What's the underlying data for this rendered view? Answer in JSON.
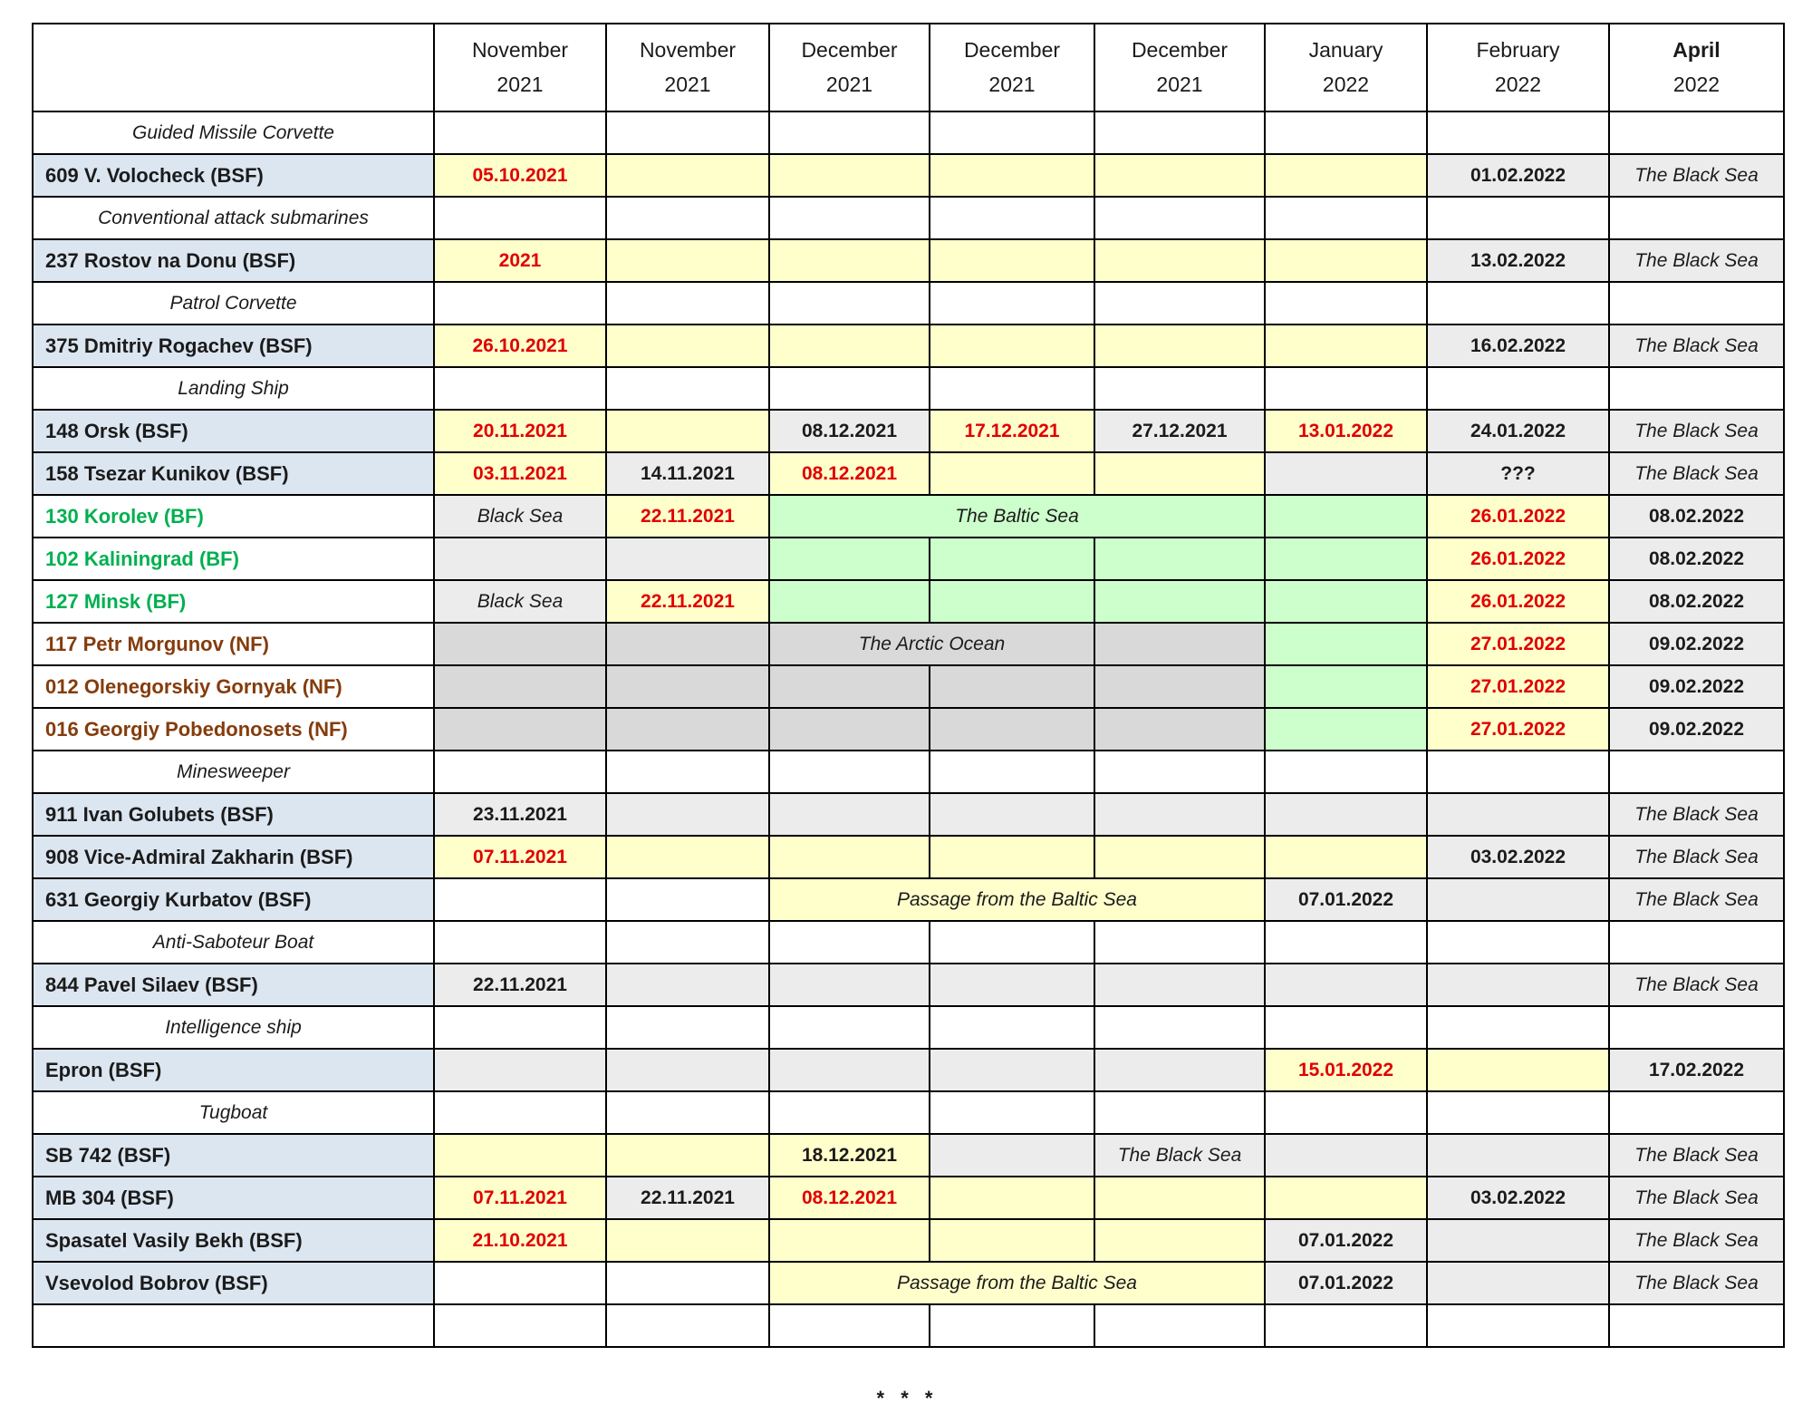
{
  "colors": {
    "yellow": "#FFFFCC",
    "green": "#CCFFCC",
    "gray": "#ECECEC",
    "gray2": "#D9D9D9",
    "white": "#FFFFFF",
    "name_bg_bsf": "#DCE6F1",
    "red_text": "#E00000",
    "black_text": "#1B1B1B",
    "bf_name": "#00B050",
    "nf_name": "#843C0C",
    "border": "#000000"
  },
  "table": {
    "columns": [
      {
        "month": "November",
        "year": "2021"
      },
      {
        "month": "November",
        "year": "2021"
      },
      {
        "month": "December",
        "year": "2021"
      },
      {
        "month": "December",
        "year": "2021"
      },
      {
        "month": "December",
        "year": "2021"
      },
      {
        "month": "January",
        "year": "2022"
      },
      {
        "month": "February",
        "year": "2022"
      },
      {
        "month": "April",
        "year": "2022",
        "bold": true
      }
    ],
    "rows": [
      {
        "type": "category",
        "label": "Guided Missile Corvette"
      },
      {
        "type": "ship",
        "name": "609 V. Volocheck (BSF)",
        "style": "bsf",
        "cells": [
          {
            "t": "05.10.2021",
            "bg": "yellow",
            "c": "red"
          },
          {
            "bg": "yellow"
          },
          {
            "bg": "yellow"
          },
          {
            "bg": "yellow"
          },
          {
            "bg": "yellow"
          },
          {
            "bg": "yellow"
          },
          {
            "t": "01.02.2022",
            "bg": "gray"
          },
          {
            "t": "The Black Sea",
            "bg": "gray",
            "i": true
          }
        ]
      },
      {
        "type": "category",
        "label": "Conventional attack submarines"
      },
      {
        "type": "ship",
        "name": "237 Rostov na Donu (BSF)",
        "style": "bsf",
        "cells": [
          {
            "t": "2021",
            "bg": "yellow",
            "c": "red"
          },
          {
            "bg": "yellow"
          },
          {
            "bg": "yellow"
          },
          {
            "bg": "yellow"
          },
          {
            "bg": "yellow"
          },
          {
            "bg": "yellow"
          },
          {
            "t": "13.02.2022",
            "bg": "gray"
          },
          {
            "t": "The Black Sea",
            "bg": "gray",
            "i": true
          }
        ]
      },
      {
        "type": "category",
        "label": "Patrol Corvette"
      },
      {
        "type": "ship",
        "name": "375 Dmitriy Rogachev (BSF)",
        "style": "bsf",
        "cells": [
          {
            "t": "26.10.2021",
            "bg": "yellow",
            "c": "red"
          },
          {
            "bg": "yellow"
          },
          {
            "bg": "yellow"
          },
          {
            "bg": "yellow"
          },
          {
            "bg": "yellow"
          },
          {
            "bg": "yellow"
          },
          {
            "t": "16.02.2022",
            "bg": "gray"
          },
          {
            "t": "The Black Sea",
            "bg": "gray",
            "i": true
          }
        ]
      },
      {
        "type": "category",
        "label": "Landing Ship"
      },
      {
        "type": "ship",
        "name": "148 Orsk (BSF)",
        "style": "bsf",
        "cells": [
          {
            "t": "20.11.2021",
            "bg": "yellow",
            "c": "red"
          },
          {
            "bg": "yellow"
          },
          {
            "t": "08.12.2021",
            "bg": "gray"
          },
          {
            "t": "17.12.2021",
            "bg": "yellow",
            "c": "red"
          },
          {
            "t": "27.12.2021",
            "bg": "gray"
          },
          {
            "t": "13.01.2022",
            "bg": "yellow",
            "c": "red"
          },
          {
            "t": "24.01.2022",
            "bg": "gray"
          },
          {
            "t": "The Black Sea",
            "bg": "gray",
            "i": true
          }
        ]
      },
      {
        "type": "ship",
        "name": "158 Tsezar Kunikov (BSF)",
        "style": "bsf",
        "cells": [
          {
            "t": "03.11.2021",
            "bg": "yellow",
            "c": "red"
          },
          {
            "t": "14.11.2021",
            "bg": "gray"
          },
          {
            "t": "08.12.2021",
            "bg": "yellow",
            "c": "red"
          },
          {
            "bg": "yellow"
          },
          {
            "bg": "yellow"
          },
          {
            "bg": "gray"
          },
          {
            "t": "???",
            "bg": "gray"
          },
          {
            "t": "The Black Sea",
            "bg": "gray",
            "i": true
          }
        ]
      },
      {
        "type": "ship",
        "name": "130 Korolev (BF)",
        "style": "bf",
        "cells": [
          {
            "t": "Black Sea",
            "bg": "gray",
            "i": true
          },
          {
            "t": "22.11.2021",
            "bg": "yellow",
            "c": "red"
          },
          {
            "t": "The Baltic Sea",
            "bg": "green",
            "i": true,
            "span": 3
          },
          {
            "bg": "green"
          },
          {
            "t": "26.01.2022",
            "bg": "yellow",
            "c": "red"
          },
          {
            "t": "08.02.2022",
            "bg": "gray"
          }
        ]
      },
      {
        "type": "ship",
        "name": "102 Kaliningrad (BF)",
        "style": "bf",
        "cells": [
          {
            "bg": "gray"
          },
          {
            "bg": "gray"
          },
          {
            "bg": "green"
          },
          {
            "bg": "green"
          },
          {
            "bg": "green"
          },
          {
            "bg": "green"
          },
          {
            "t": "26.01.2022",
            "bg": "yellow",
            "c": "red"
          },
          {
            "t": "08.02.2022",
            "bg": "gray"
          }
        ]
      },
      {
        "type": "ship",
        "name": "127 Minsk (BF)",
        "style": "bf",
        "cells": [
          {
            "t": "Black Sea",
            "bg": "gray",
            "i": true
          },
          {
            "t": "22.11.2021",
            "bg": "yellow",
            "c": "red"
          },
          {
            "bg": "green"
          },
          {
            "bg": "green"
          },
          {
            "bg": "green"
          },
          {
            "bg": "green"
          },
          {
            "t": "26.01.2022",
            "bg": "yellow",
            "c": "red"
          },
          {
            "t": "08.02.2022",
            "bg": "gray"
          }
        ]
      },
      {
        "type": "ship",
        "name": "117 Petr Morgunov (NF)",
        "style": "nf",
        "cells": [
          {
            "bg": "gray2"
          },
          {
            "bg": "gray2"
          },
          {
            "t": "The Arctic Ocean",
            "bg": "gray2",
            "i": true,
            "span": 2
          },
          {
            "bg": "gray2"
          },
          {
            "bg": "green"
          },
          {
            "t": "27.01.2022",
            "bg": "yellow",
            "c": "red"
          },
          {
            "t": "09.02.2022",
            "bg": "gray"
          }
        ]
      },
      {
        "type": "ship",
        "name": "012 Olenegorskiy Gornyak (NF)",
        "style": "nf",
        "cells": [
          {
            "bg": "gray2"
          },
          {
            "bg": "gray2"
          },
          {
            "bg": "gray2"
          },
          {
            "bg": "gray2"
          },
          {
            "bg": "gray2"
          },
          {
            "bg": "green"
          },
          {
            "t": "27.01.2022",
            "bg": "yellow",
            "c": "red"
          },
          {
            "t": "09.02.2022",
            "bg": "gray"
          }
        ]
      },
      {
        "type": "ship",
        "name": "016 Georgiy Pobedonosets (NF)",
        "style": "nf",
        "cells": [
          {
            "bg": "gray2"
          },
          {
            "bg": "gray2"
          },
          {
            "bg": "gray2"
          },
          {
            "bg": "gray2"
          },
          {
            "bg": "gray2"
          },
          {
            "bg": "green"
          },
          {
            "t": "27.01.2022",
            "bg": "yellow",
            "c": "red"
          },
          {
            "t": "09.02.2022",
            "bg": "gray"
          }
        ]
      },
      {
        "type": "category",
        "label": "Minesweeper"
      },
      {
        "type": "ship",
        "name": "911 Ivan Golubets (BSF)",
        "style": "bsf",
        "cells": [
          {
            "t": "23.11.2021",
            "bg": "gray"
          },
          {
            "bg": "gray"
          },
          {
            "bg": "gray"
          },
          {
            "bg": "gray"
          },
          {
            "bg": "gray"
          },
          {
            "bg": "gray"
          },
          {
            "bg": "gray"
          },
          {
            "t": "The Black Sea",
            "bg": "gray",
            "i": true
          }
        ]
      },
      {
        "type": "ship",
        "name": "908 Vice-Admiral Zakharin (BSF)",
        "style": "bsf",
        "cells": [
          {
            "t": "07.11.2021",
            "bg": "yellow",
            "c": "red"
          },
          {
            "bg": "yellow"
          },
          {
            "bg": "yellow"
          },
          {
            "bg": "yellow"
          },
          {
            "bg": "yellow"
          },
          {
            "bg": "yellow"
          },
          {
            "t": "03.02.2022",
            "bg": "gray"
          },
          {
            "t": "The Black Sea",
            "bg": "gray",
            "i": true
          }
        ]
      },
      {
        "type": "ship",
        "name": "631 Georgiy Kurbatov (BSF)",
        "style": "bsf",
        "cells": [
          {
            "bg": "white"
          },
          {
            "bg": "white"
          },
          {
            "t": "Passage from the Baltic Sea",
            "bg": "yellow",
            "i": true,
            "span": 3
          },
          {
            "t": "07.01.2022",
            "bg": "gray"
          },
          {
            "bg": "gray"
          },
          {
            "t": "The Black Sea",
            "bg": "gray",
            "i": true
          }
        ]
      },
      {
        "type": "category",
        "label": "Anti-Saboteur Boat"
      },
      {
        "type": "ship",
        "name": "844 Pavel Silaev (BSF)",
        "style": "bsf",
        "cells": [
          {
            "t": "22.11.2021",
            "bg": "gray"
          },
          {
            "bg": "gray"
          },
          {
            "bg": "gray"
          },
          {
            "bg": "gray"
          },
          {
            "bg": "gray"
          },
          {
            "bg": "gray"
          },
          {
            "bg": "gray"
          },
          {
            "t": "The Black Sea",
            "bg": "gray",
            "i": true
          }
        ]
      },
      {
        "type": "category",
        "label": "Intelligence ship"
      },
      {
        "type": "ship",
        "name": "Epron (BSF)",
        "style": "bsf",
        "cells": [
          {
            "bg": "gray"
          },
          {
            "bg": "gray"
          },
          {
            "bg": "gray"
          },
          {
            "bg": "gray"
          },
          {
            "bg": "gray"
          },
          {
            "t": "15.01.2022",
            "bg": "yellow",
            "c": "red"
          },
          {
            "bg": "yellow"
          },
          {
            "t": "17.02.2022",
            "bg": "gray"
          }
        ]
      },
      {
        "type": "category",
        "label": "Tugboat"
      },
      {
        "type": "ship",
        "name": "SB 742 (BSF)",
        "style": "bsf",
        "cells": [
          {
            "bg": "yellow"
          },
          {
            "bg": "yellow"
          },
          {
            "t": "18.12.2021",
            "bg": "yellow"
          },
          {
            "bg": "gray"
          },
          {
            "t": "The Black Sea",
            "bg": "gray",
            "i": true
          },
          {
            "bg": "gray"
          },
          {
            "bg": "gray"
          },
          {
            "t": "The Black Sea",
            "bg": "gray",
            "i": true
          }
        ]
      },
      {
        "type": "ship",
        "name": "MB 304 (BSF)",
        "style": "bsf",
        "cells": [
          {
            "t": "07.11.2021",
            "bg": "yellow",
            "c": "red"
          },
          {
            "t": "22.11.2021",
            "bg": "gray"
          },
          {
            "t": "08.12.2021",
            "bg": "yellow",
            "c": "red"
          },
          {
            "bg": "yellow"
          },
          {
            "bg": "yellow"
          },
          {
            "bg": "yellow"
          },
          {
            "t": "03.02.2022",
            "bg": "gray"
          },
          {
            "t": "The Black Sea",
            "bg": "gray",
            "i": true
          }
        ]
      },
      {
        "type": "ship",
        "name": "Spasatel Vasily Bekh (BSF)",
        "style": "bsf",
        "cells": [
          {
            "t": "21.10.2021",
            "bg": "yellow",
            "c": "red"
          },
          {
            "bg": "yellow"
          },
          {
            "bg": "yellow"
          },
          {
            "bg": "yellow"
          },
          {
            "bg": "yellow"
          },
          {
            "t": "07.01.2022",
            "bg": "gray"
          },
          {
            "bg": "gray"
          },
          {
            "t": "The Black Sea",
            "bg": "gray",
            "i": true
          }
        ]
      },
      {
        "type": "ship",
        "name": "Vsevolod Bobrov (BSF)",
        "style": "bsf",
        "cells": [
          {
            "bg": "white"
          },
          {
            "bg": "white"
          },
          {
            "t": "Passage from the Baltic Sea",
            "bg": "yellow",
            "i": true,
            "span": 3
          },
          {
            "t": "07.01.2022",
            "bg": "gray"
          },
          {
            "bg": "gray"
          },
          {
            "t": "The Black Sea",
            "bg": "gray",
            "i": true
          }
        ]
      },
      {
        "type": "empty",
        "cells": [
          {
            "bg": "white"
          },
          {
            "bg": "white"
          },
          {
            "bg": "white"
          },
          {
            "bg": "white"
          },
          {
            "bg": "white"
          },
          {
            "bg": "white"
          },
          {
            "bg": "white"
          },
          {
            "bg": "white"
          }
        ]
      }
    ]
  },
  "footer": {
    "marks": "* * *"
  }
}
